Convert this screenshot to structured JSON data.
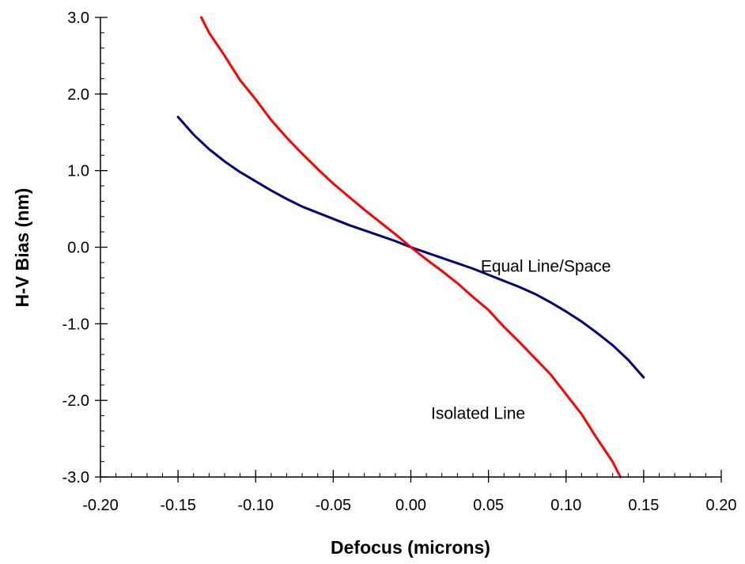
{
  "chart_data": {
    "type": "line",
    "title": "",
    "xlabel": "Defocus (microns)",
    "ylabel": "H-V Bias (nm)",
    "xlim": [
      -0.2,
      0.2
    ],
    "ylim": [
      -3.0,
      3.0
    ],
    "x_ticks": [
      -0.2,
      -0.15,
      -0.1,
      -0.05,
      0.0,
      0.05,
      0.1,
      0.15,
      0.2
    ],
    "x_tick_labels": [
      "-0.20",
      "-0.15",
      "-0.10",
      "-0.05",
      "0.00",
      "0.05",
      "0.10",
      "0.15",
      "0.20"
    ],
    "y_ticks": [
      -3.0,
      -2.0,
      -1.0,
      0.0,
      1.0,
      2.0,
      3.0
    ],
    "y_tick_labels": [
      "-3.0",
      "-2.0",
      "-1.0",
      "0.0",
      "1.0",
      "2.0",
      "3.0"
    ],
    "x_minor_step": 0.01,
    "y_minor_step": 0.2,
    "grid": false,
    "legend": "none",
    "series": [
      {
        "name": "Equal Line/Space",
        "color": "#00007f",
        "x": [
          -0.15,
          -0.14,
          -0.13,
          -0.12,
          -0.11,
          -0.1,
          -0.09,
          -0.08,
          -0.07,
          -0.06,
          -0.05,
          -0.04,
          -0.03,
          -0.02,
          -0.01,
          0.0,
          0.01,
          0.02,
          0.03,
          0.04,
          0.05,
          0.06,
          0.07,
          0.08,
          0.09,
          0.1,
          0.11,
          0.12,
          0.13,
          0.14,
          0.15
        ],
        "y": [
          1.7,
          1.47,
          1.28,
          1.12,
          0.98,
          0.86,
          0.74,
          0.63,
          0.53,
          0.45,
          0.37,
          0.29,
          0.22,
          0.15,
          0.08,
          0.0,
          -0.07,
          -0.14,
          -0.21,
          -0.28,
          -0.36,
          -0.44,
          -0.52,
          -0.61,
          -0.72,
          -0.84,
          -0.97,
          -1.12,
          -1.28,
          -1.47,
          -1.7
        ]
      },
      {
        "name": "Isolated Line",
        "color": "#ff0000",
        "x": [
          -0.135,
          -0.13,
          -0.12,
          -0.11,
          -0.1,
          -0.09,
          -0.08,
          -0.07,
          -0.06,
          -0.05,
          -0.04,
          -0.03,
          -0.02,
          -0.01,
          0.0,
          0.01,
          0.02,
          0.03,
          0.04,
          0.05,
          0.06,
          0.07,
          0.08,
          0.09,
          0.1,
          0.11,
          0.12,
          0.13,
          0.135
        ],
        "y": [
          3.0,
          2.8,
          2.5,
          2.18,
          1.93,
          1.66,
          1.43,
          1.22,
          1.02,
          0.83,
          0.66,
          0.49,
          0.33,
          0.17,
          0.0,
          -0.16,
          -0.31,
          -0.47,
          -0.65,
          -0.82,
          -1.04,
          -1.24,
          -1.45,
          -1.66,
          -1.92,
          -2.18,
          -2.5,
          -2.8,
          -3.0
        ]
      }
    ],
    "annotations": [
      {
        "text": "Equal Line/Space",
        "x": 0.045,
        "y": -0.25
      },
      {
        "text": "Isolated Line",
        "x": 0.013,
        "y": -2.17
      }
    ]
  }
}
